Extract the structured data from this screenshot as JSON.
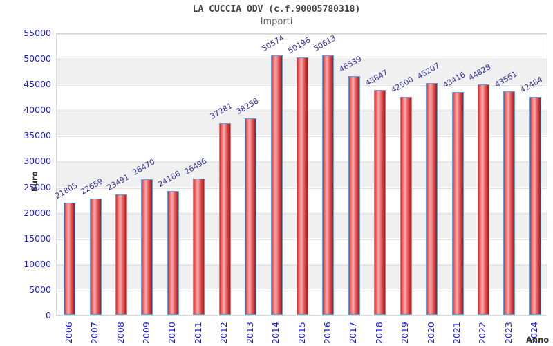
{
  "chart_data": {
    "type": "bar",
    "title": "LA CUCCIA ODV (c.f.90005780318)",
    "subtitle": "Importi",
    "xlabel": "Anno",
    "ylabel": "Euro",
    "categories": [
      "2006",
      "2007",
      "2008",
      "2009",
      "2010",
      "2011",
      "2012",
      "2013",
      "2014",
      "2015",
      "2016",
      "2017",
      "2018",
      "2019",
      "2020",
      "2021",
      "2022",
      "2023",
      "2024"
    ],
    "values": [
      21805,
      22659,
      23491,
      26470,
      24188,
      26496,
      37281,
      38258,
      50574,
      50196,
      50613,
      46539,
      43847,
      42500,
      45207,
      43416,
      44828,
      43561,
      42484
    ],
    "ylim": [
      0,
      55000
    ],
    "ytick_step": 5000,
    "grid": true,
    "alternating_bands": true,
    "legend": false,
    "colors": {
      "bar_fill": "#e04040",
      "bar_fill_light": "#f5a0a0",
      "bar_edge": "#55a4ea",
      "value_label": "#333399",
      "tick_label": "#1c1cd8",
      "band": "#f0f0f0",
      "gridline": "#e0e0e0",
      "title": "#444444",
      "subtitle": "#666666",
      "axis_title": "#333333"
    }
  }
}
